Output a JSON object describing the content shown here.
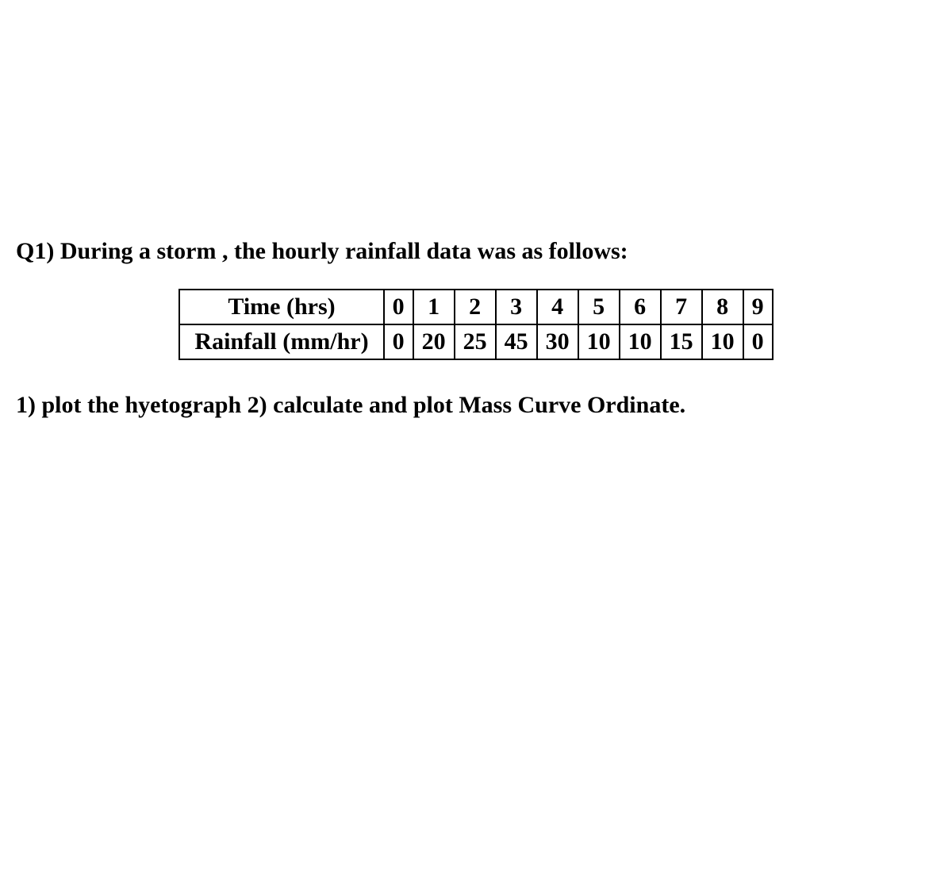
{
  "question": {
    "intro": "Q1) During a storm , the hourly rainfall data was as follows:",
    "parts": "1) plot the hyetograph   2) calculate and plot Mass Curve Ordinate."
  },
  "table": {
    "type": "table",
    "row1_label": "Time (hrs)",
    "row2_label": "Rainfall (mm/hr)",
    "time_values": [
      "0",
      "1",
      "2",
      "3",
      "4",
      "5",
      "6",
      "7",
      "8",
      "9"
    ],
    "rainfall_values": [
      "0",
      "20",
      "25",
      "45",
      "30",
      "10",
      "10",
      "15",
      "10",
      "0"
    ],
    "border_color": "#000000",
    "text_color": "#000000",
    "background_color": "#ffffff",
    "font_size_pt": 22,
    "font_weight": "bold",
    "font_family": "Times New Roman"
  },
  "page": {
    "background_color": "#ffffff",
    "text_color": "#000000"
  }
}
